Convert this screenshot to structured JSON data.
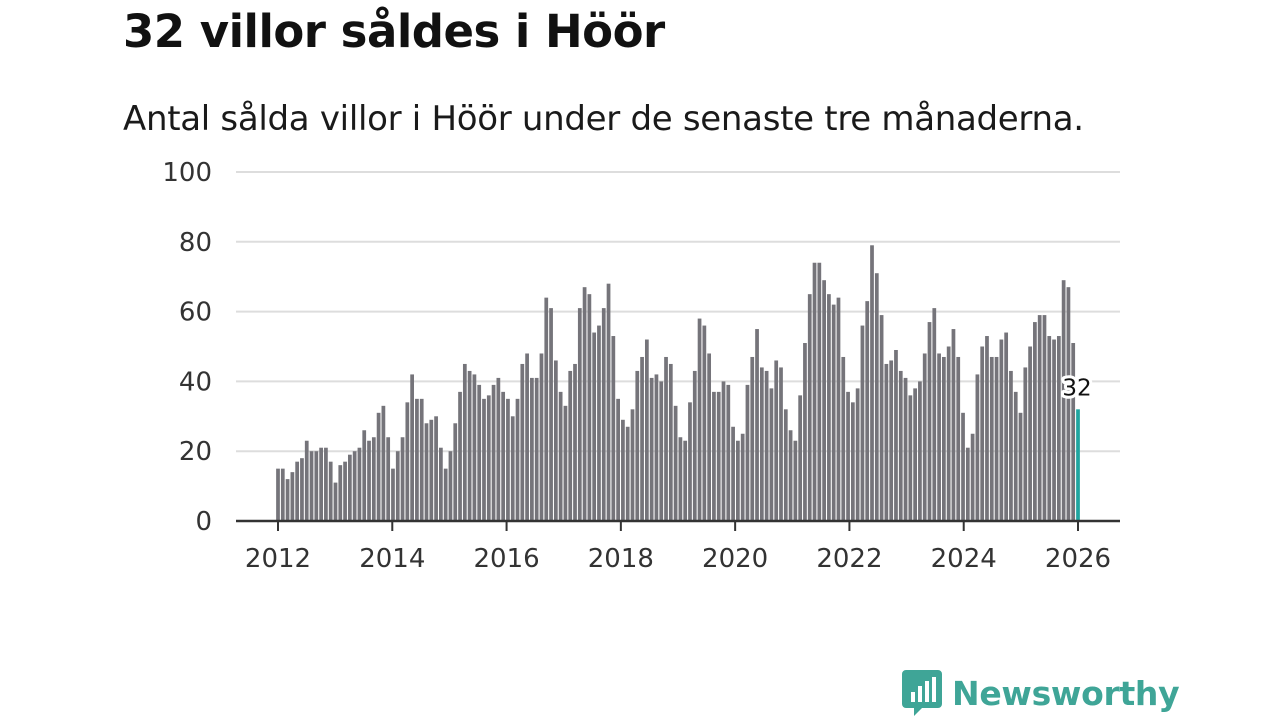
{
  "title": "32 villor såldes i Höör",
  "subtitle": "Antal sålda villor i Höör under de senaste tre månaderna.",
  "brand": {
    "name": "Newsworthy",
    "icon": "newsworthy-logo-icon",
    "color": "#3fa597"
  },
  "colors": {
    "bar": "#75747a",
    "highlight": "#1fa5a0",
    "grid": "#dddddd",
    "axis": "#333333"
  },
  "chart_data": {
    "type": "bar",
    "title": "32 villor såldes i Höör",
    "xlabel": "",
    "ylabel": "",
    "ylim": [
      0,
      100
    ],
    "yticks": [
      "0",
      "20",
      "40",
      "60",
      "80",
      "100"
    ],
    "xticks": [
      "2012",
      "2014",
      "2016",
      "2018",
      "2020",
      "2022",
      "2024",
      "2026"
    ],
    "x_start": 2012.0,
    "x_end": 2026.0,
    "highlight": {
      "label": "32",
      "value": 32
    },
    "series": [
      {
        "name": "Antal sålda villor",
        "values": [
          15,
          15,
          12,
          14,
          17,
          18,
          23,
          20,
          20,
          21,
          21,
          17,
          11,
          16,
          17,
          19,
          20,
          21,
          26,
          23,
          24,
          31,
          33,
          24,
          15,
          20,
          24,
          34,
          42,
          35,
          35,
          28,
          29,
          30,
          21,
          15,
          20,
          28,
          37,
          45,
          43,
          42,
          39,
          35,
          36,
          39,
          41,
          37,
          35,
          30,
          35,
          45,
          48,
          41,
          41,
          48,
          64,
          61,
          46,
          37,
          33,
          43,
          45,
          61,
          67,
          65,
          54,
          56,
          61,
          68,
          53,
          35,
          29,
          27,
          32,
          43,
          47,
          52,
          41,
          42,
          40,
          47,
          45,
          33,
          24,
          23,
          34,
          43,
          58,
          56,
          48,
          37,
          37,
          40,
          39,
          27,
          23,
          25,
          39,
          47,
          55,
          44,
          43,
          38,
          46,
          44,
          32,
          26,
          23,
          36,
          51,
          65,
          74,
          74,
          69,
          65,
          62,
          64,
          47,
          37,
          34,
          38,
          56,
          63,
          79,
          71,
          59,
          45,
          46,
          49,
          43,
          41,
          36,
          38,
          40,
          48,
          57,
          61,
          48,
          47,
          50,
          55,
          47,
          31,
          21,
          25,
          42,
          50,
          53,
          47,
          47,
          52,
          54,
          43,
          37,
          31,
          44,
          50,
          57,
          59,
          59,
          53,
          52,
          53,
          69,
          67,
          51,
          32
        ]
      }
    ]
  }
}
